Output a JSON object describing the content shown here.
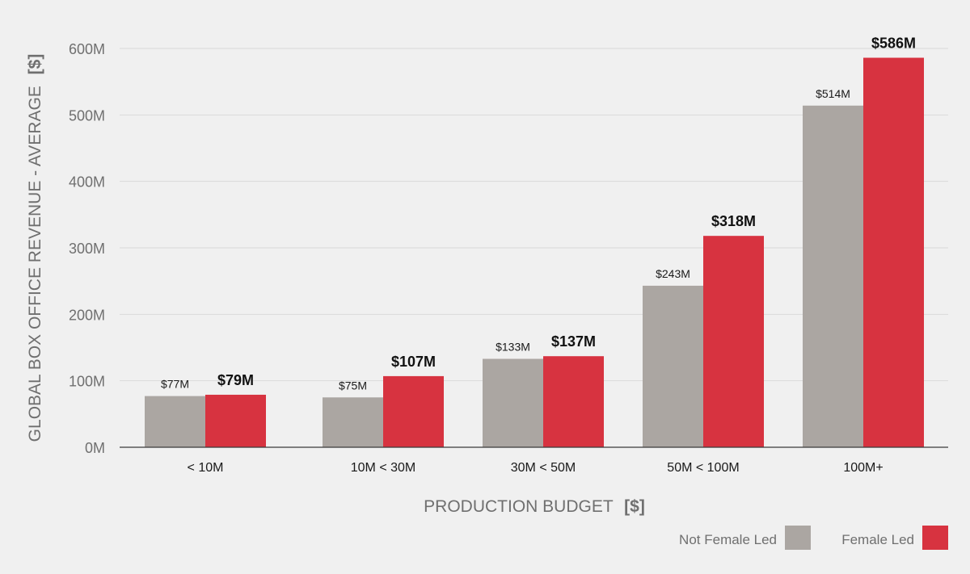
{
  "chart_data": {
    "type": "bar",
    "xlabel": "PRODUCTION BUDGET",
    "xlabel_unit": "[$]",
    "ylabel": "GLOBAL BOX OFFICE REVENUE - AVERAGE",
    "ylabel_unit": "[$]",
    "ylim": [
      0,
      600
    ],
    "yticks": [
      {
        "value": 0,
        "label": "0M"
      },
      {
        "value": 100,
        "label": "100M"
      },
      {
        "value": 200,
        "label": "200M"
      },
      {
        "value": 300,
        "label": "300M"
      },
      {
        "value": 400,
        "label": "400M"
      },
      {
        "value": 500,
        "label": "500M"
      },
      {
        "value": 600,
        "label": "600M"
      }
    ],
    "grid": true,
    "legend_position": "bottom-right",
    "categories": [
      "< 10M",
      "10M < 30M",
      "30M < 50M",
      "50M < 100M",
      "100M+"
    ],
    "series": [
      {
        "name": "Not Female Led",
        "color": "#aba6a2",
        "values": [
          77,
          75,
          133,
          243,
          514
        ],
        "labels": [
          "$77M",
          "$75M",
          "$133M",
          "$243M",
          "$514M"
        ]
      },
      {
        "name": "Female Led",
        "color": "#d73340",
        "values": [
          79,
          107,
          137,
          318,
          586
        ],
        "labels": [
          "$79M",
          "$107M",
          "$137M",
          "$318M",
          "$586M"
        ]
      }
    ]
  }
}
